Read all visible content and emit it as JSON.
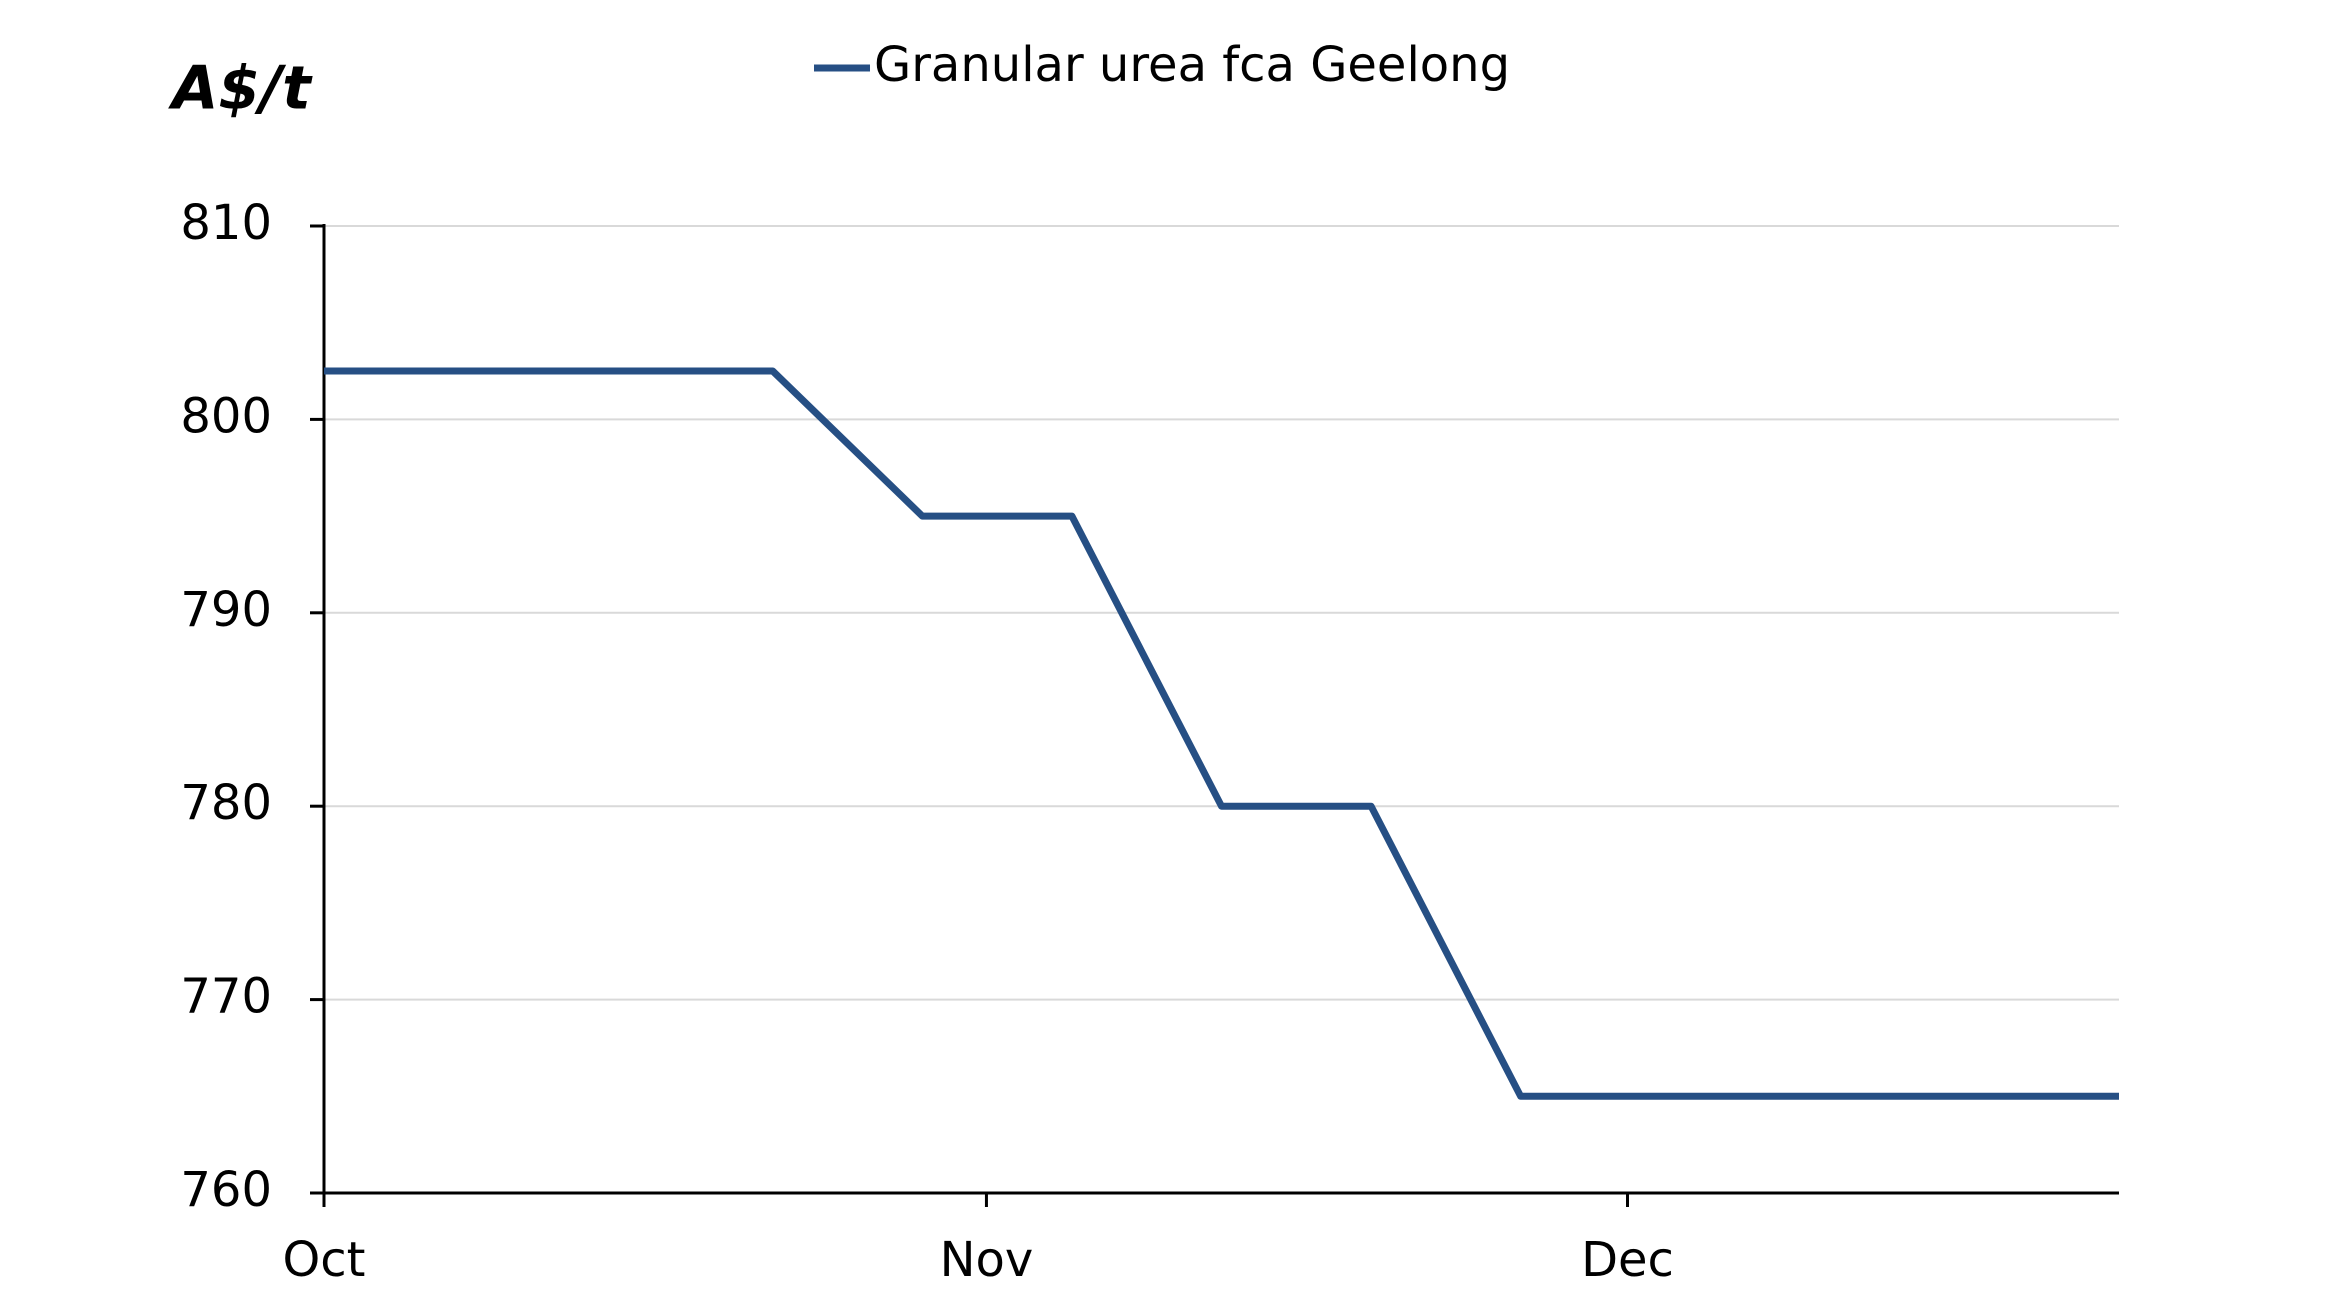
{
  "chart_data": {
    "type": "line",
    "y_label": "A$/t",
    "x": [
      0,
      7,
      14,
      21,
      28,
      35,
      42,
      49,
      56,
      63,
      70,
      77,
      84
    ],
    "series": [
      {
        "name": "Granular urea fca Geelong",
        "color": "#264f84",
        "values": [
          802.5,
          802.5,
          802.5,
          802.5,
          795,
          795,
          780,
          780,
          765,
          765,
          765,
          765,
          765
        ]
      }
    ],
    "xlim": [
      0,
      84
    ],
    "xticks": [
      {
        "value": 0,
        "label": "Oct"
      },
      {
        "value": 31,
        "label": "Nov"
      },
      {
        "value": 61,
        "label": "Dec"
      }
    ],
    "ylim": [
      760,
      810
    ],
    "yticks": [
      760,
      770,
      780,
      790,
      800,
      810
    ],
    "grid": true,
    "legend": "top"
  }
}
